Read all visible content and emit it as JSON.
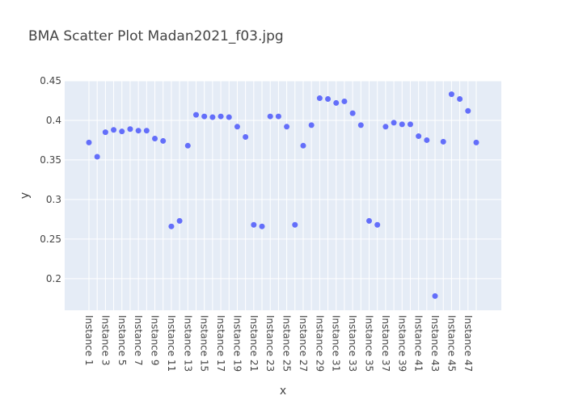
{
  "chart_data": {
    "type": "scatter",
    "title": "BMA Scatter Plot Madan2021_f03.jpg",
    "xlabel": "x",
    "ylabel": "y",
    "ylim": [
      0.16,
      0.45
    ],
    "yticks": [
      0.2,
      0.25,
      0.3,
      0.35,
      0.4,
      0.45
    ],
    "ytick_labels": [
      "0.2",
      "0.25",
      "0.3",
      "0.35",
      "0.4",
      "0.45"
    ],
    "grid": true,
    "marker_color": "#636efa",
    "plot_background": "#e5ecf6",
    "x": [
      "Instance 1",
      "Instance 2",
      "Instance 3",
      "Instance 4",
      "Instance 5",
      "Instance 6",
      "Instance 7",
      "Instance 8",
      "Instance 9",
      "Instance 10",
      "Instance 11",
      "Instance 12",
      "Instance 13",
      "Instance 14",
      "Instance 15",
      "Instance 16",
      "Instance 17",
      "Instance 18",
      "Instance 19",
      "Instance 20",
      "Instance 21",
      "Instance 22",
      "Instance 23",
      "Instance 24",
      "Instance 25",
      "Instance 26",
      "Instance 27",
      "Instance 28",
      "Instance 29",
      "Instance 30",
      "Instance 31",
      "Instance 32",
      "Instance 33",
      "Instance 34",
      "Instance 35",
      "Instance 36",
      "Instance 37",
      "Instance 38",
      "Instance 39",
      "Instance 40",
      "Instance 41",
      "Instance 42",
      "Instance 43",
      "Instance 44",
      "Instance 45",
      "Instance 46",
      "Instance 47",
      "Instance 48"
    ],
    "xtick_labels": [
      "Instance 1",
      "Instance 3",
      "Instance 5",
      "Instance 7",
      "Instance 9",
      "Instance 11",
      "Instance 13",
      "Instance 15",
      "Instance 17",
      "Instance 19",
      "Instance 21",
      "Instance 23",
      "Instance 25",
      "Instance 27",
      "Instance 29",
      "Instance 31",
      "Instance 33",
      "Instance 35",
      "Instance 37",
      "Instance 39",
      "Instance 41",
      "Instance 43",
      "Instance 45",
      "Instance 47"
    ],
    "y": [
      0.372,
      0.354,
      0.385,
      0.388,
      0.386,
      0.389,
      0.387,
      0.387,
      0.377,
      0.374,
      0.266,
      0.273,
      0.368,
      0.407,
      0.405,
      0.404,
      0.405,
      0.404,
      0.392,
      0.379,
      0.268,
      0.266,
      0.405,
      0.405,
      0.392,
      0.268,
      0.368,
      0.394,
      0.428,
      0.427,
      0.422,
      0.424,
      0.409,
      0.394,
      0.273,
      0.268,
      0.392,
      0.397,
      0.395,
      0.395,
      0.38,
      0.375,
      0.178,
      0.373,
      0.433,
      0.427,
      0.412,
      0.372
    ]
  }
}
